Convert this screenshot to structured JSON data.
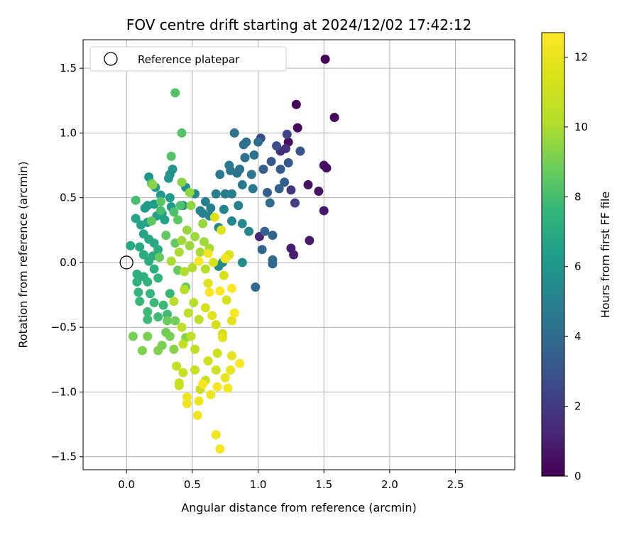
{
  "chart_data": {
    "type": "scatter",
    "title": "FOV centre drift starting at 2024/12/02 17:42:12",
    "xlabel": "Angular distance from reference (arcmin)",
    "ylabel": "Rotation from reference (arcmin)",
    "xlim": [
      -0.33,
      2.95
    ],
    "ylim": [
      -1.6,
      1.72
    ],
    "xticks": [
      "0.0",
      "0.5",
      "1.0",
      "1.5",
      "2.0",
      "2.5"
    ],
    "xtick_values": [
      0,
      0.5,
      1.0,
      1.5,
      2.0,
      2.5
    ],
    "yticks": [
      "−1.5",
      "−1.0",
      "−0.5",
      "0.0",
      "0.5",
      "1.0",
      "1.5"
    ],
    "ytick_values": [
      -1.5,
      -1.0,
      -0.5,
      0,
      0.5,
      1.0,
      1.5
    ],
    "grid": true,
    "colormap": "viridis",
    "colorbar": {
      "label": "Hours from first FF file",
      "range": [
        0,
        12.7
      ],
      "ticks": [
        "0",
        "2",
        "4",
        "6",
        "8",
        "10",
        "12"
      ],
      "tick_values": [
        0,
        2,
        4,
        6,
        8,
        10,
        12
      ]
    },
    "legend": {
      "position": "top-left",
      "entries": [
        "Reference platepar"
      ]
    },
    "reference_point": {
      "x": 0.0,
      "y": 0.0
    },
    "points": [
      [
        1.51,
        1.57,
        0.1
      ],
      [
        1.29,
        1.22,
        0.2
      ],
      [
        1.3,
        1.04,
        0.3
      ],
      [
        1.58,
        1.12,
        0.3
      ],
      [
        1.23,
        0.93,
        0.4
      ],
      [
        1.5,
        0.75,
        0.5
      ],
      [
        1.52,
        0.73,
        0.5
      ],
      [
        1.38,
        0.6,
        0.6
      ],
      [
        1.46,
        0.55,
        0.6
      ],
      [
        1.5,
        0.4,
        0.7
      ],
      [
        1.39,
        0.17,
        0.8
      ],
      [
        1.25,
        0.11,
        0.9
      ],
      [
        1.27,
        0.06,
        1.0
      ],
      [
        1.01,
        0.2,
        1.2
      ],
      [
        1.17,
        0.86,
        1.5
      ],
      [
        1.21,
        0.88,
        1.6
      ],
      [
        1.25,
        0.56,
        1.8
      ],
      [
        1.28,
        0.46,
        2.1
      ],
      [
        1.22,
        0.99,
        2.3
      ],
      [
        1.02,
        0.96,
        2.6
      ],
      [
        1.14,
        0.9,
        2.8
      ],
      [
        1.32,
        0.86,
        3.0
      ],
      [
        1.1,
        0.78,
        3.1
      ],
      [
        1.23,
        0.77,
        3.2
      ],
      [
        1.17,
        0.72,
        3.3
      ],
      [
        1.04,
        0.72,
        3.4
      ],
      [
        1.2,
        0.62,
        3.5
      ],
      [
        1.07,
        0.54,
        3.5
      ],
      [
        1.16,
        0.57,
        3.6
      ],
      [
        1.05,
        0.24,
        3.6
      ],
      [
        1.11,
        0.21,
        3.7
      ],
      [
        1.03,
        0.1,
        3.7
      ],
      [
        1.11,
        0.02,
        3.8
      ],
      [
        1.11,
        -0.01,
        3.8
      ],
      [
        0.98,
        -0.19,
        3.9
      ],
      [
        1.09,
        0.46,
        4.0
      ],
      [
        1.0,
        0.93,
        4.0
      ],
      [
        0.91,
        0.93,
        4.1
      ],
      [
        0.89,
        0.91,
        4.2
      ],
      [
        0.82,
        1.0,
        4.2
      ],
      [
        0.97,
        0.83,
        4.3
      ],
      [
        0.9,
        0.81,
        4.3
      ],
      [
        0.86,
        0.72,
        4.4
      ],
      [
        0.84,
        0.69,
        4.4
      ],
      [
        0.95,
        0.68,
        4.5
      ],
      [
        0.79,
        0.71,
        4.5
      ],
      [
        0.78,
        0.75,
        4.6
      ],
      [
        0.71,
        0.68,
        4.6
      ],
      [
        0.88,
        0.6,
        4.7
      ],
      [
        0.96,
        0.57,
        4.7
      ],
      [
        0.8,
        0.53,
        4.8
      ],
      [
        0.75,
        0.53,
        4.8
      ],
      [
        0.68,
        0.53,
        4.9
      ],
      [
        0.6,
        0.47,
        4.9
      ],
      [
        0.85,
        0.44,
        5.0
      ],
      [
        0.64,
        0.42,
        5.0
      ],
      [
        0.58,
        0.38,
        5.1
      ],
      [
        0.56,
        0.4,
        5.1
      ],
      [
        0.63,
        0.36,
        5.2
      ],
      [
        0.74,
        0.41,
        5.2
      ],
      [
        0.8,
        0.32,
        5.3
      ],
      [
        0.93,
        0.24,
        5.3
      ],
      [
        0.88,
        0.3,
        5.4
      ],
      [
        0.7,
        0.27,
        5.4
      ],
      [
        0.73,
        0.0,
        5.5
      ],
      [
        0.7,
        -0.03,
        5.5
      ],
      [
        0.88,
        0.0,
        5.6
      ],
      [
        0.52,
        0.53,
        5.6
      ],
      [
        0.45,
        0.58,
        5.7
      ],
      [
        0.43,
        0.44,
        5.8
      ],
      [
        0.35,
        0.72,
        5.9
      ],
      [
        0.33,
        0.68,
        5.9
      ],
      [
        0.32,
        0.65,
        6.0
      ],
      [
        0.17,
        0.66,
        6.0
      ],
      [
        0.22,
        0.58,
        6.1
      ],
      [
        0.26,
        0.52,
        6.1
      ],
      [
        0.33,
        0.5,
        6.2
      ],
      [
        0.21,
        0.45,
        6.2
      ],
      [
        0.16,
        0.44,
        6.3
      ],
      [
        0.14,
        0.42,
        6.3
      ],
      [
        0.34,
        0.43,
        6.4
      ],
      [
        0.27,
        0.38,
        6.4
      ],
      [
        0.23,
        0.36,
        6.5
      ],
      [
        0.29,
        0.33,
        6.5
      ],
      [
        0.16,
        0.31,
        6.6
      ],
      [
        0.11,
        0.29,
        6.6
      ],
      [
        0.07,
        0.34,
        6.7
      ],
      [
        0.13,
        0.22,
        6.7
      ],
      [
        0.17,
        0.18,
        6.8
      ],
      [
        0.21,
        0.15,
        6.8
      ],
      [
        0.03,
        0.13,
        6.9
      ],
      [
        0.1,
        0.12,
        6.9
      ],
      [
        0.13,
        0.06,
        7.0
      ],
      [
        0.2,
        0.05,
        7.0
      ],
      [
        0.24,
        0.1,
        7.1
      ],
      [
        0.17,
        0.01,
        7.1
      ],
      [
        0.08,
        -0.09,
        7.2
      ],
      [
        0.13,
        -0.11,
        7.2
      ],
      [
        0.21,
        -0.05,
        7.3
      ],
      [
        0.08,
        -0.15,
        7.3
      ],
      [
        0.16,
        -0.15,
        7.4
      ],
      [
        0.24,
        -0.12,
        7.4
      ],
      [
        0.09,
        -0.23,
        7.5
      ],
      [
        0.18,
        -0.24,
        7.5
      ],
      [
        0.33,
        -0.24,
        7.6
      ],
      [
        0.1,
        -0.3,
        7.6
      ],
      [
        0.21,
        -0.31,
        7.7
      ],
      [
        0.28,
        -0.33,
        7.7
      ],
      [
        0.16,
        -0.38,
        7.8
      ],
      [
        0.16,
        -0.44,
        7.8
      ],
      [
        0.24,
        -0.42,
        7.9
      ],
      [
        0.31,
        -0.4,
        7.9
      ],
      [
        0.07,
        0.48,
        8.0
      ],
      [
        0.26,
        0.4,
        8.0
      ],
      [
        0.36,
        0.39,
        8.1
      ],
      [
        0.41,
        0.44,
        8.1
      ],
      [
        0.37,
        1.31,
        8.2
      ],
      [
        0.42,
        1.0,
        8.3
      ],
      [
        0.34,
        0.82,
        8.3
      ],
      [
        0.19,
        0.61,
        8.4
      ],
      [
        0.26,
        0.47,
        8.4
      ],
      [
        0.39,
        0.33,
        8.5
      ],
      [
        0.19,
        0.32,
        8.5
      ],
      [
        0.3,
        0.21,
        8.6
      ],
      [
        0.37,
        0.15,
        8.6
      ],
      [
        0.25,
        0.04,
        8.7
      ],
      [
        0.39,
        -0.06,
        8.7
      ],
      [
        0.45,
        -0.19,
        8.8
      ],
      [
        0.31,
        -0.45,
        8.8
      ],
      [
        0.37,
        -0.45,
        8.9
      ],
      [
        0.3,
        -0.54,
        8.9
      ],
      [
        0.33,
        -0.57,
        9.0
      ],
      [
        0.05,
        -0.57,
        9.0
      ],
      [
        0.16,
        -0.57,
        9.1
      ],
      [
        0.27,
        -0.64,
        9.1
      ],
      [
        0.24,
        -0.68,
        9.2
      ],
      [
        0.12,
        -0.68,
        9.2
      ],
      [
        0.36,
        -0.67,
        9.3
      ],
      [
        0.45,
        -0.58,
        9.3
      ],
      [
        0.2,
        0.6,
        9.4
      ],
      [
        0.42,
        0.62,
        9.4
      ],
      [
        0.48,
        0.54,
        9.5
      ],
      [
        0.49,
        0.44,
        9.5
      ],
      [
        0.58,
        0.3,
        9.6
      ],
      [
        0.46,
        0.25,
        9.6
      ],
      [
        0.52,
        0.2,
        9.7
      ],
      [
        0.48,
        0.13,
        9.7
      ],
      [
        0.42,
        0.17,
        9.8
      ],
      [
        0.59,
        0.16,
        9.8
      ],
      [
        0.63,
        0.11,
        9.9
      ],
      [
        0.56,
        0.08,
        9.9
      ],
      [
        0.4,
        0.08,
        10.0
      ],
      [
        0.34,
        0.01,
        10.0
      ],
      [
        0.44,
        -0.07,
        10.1
      ],
      [
        0.5,
        -0.04,
        10.1
      ],
      [
        0.6,
        -0.05,
        10.2
      ],
      [
        0.44,
        -0.21,
        10.2
      ],
      [
        0.51,
        -0.31,
        10.3
      ],
      [
        0.36,
        -0.3,
        10.3
      ],
      [
        0.47,
        -0.39,
        10.4
      ],
      [
        0.55,
        -0.44,
        10.4
      ],
      [
        0.42,
        -0.5,
        10.5
      ],
      [
        0.49,
        -0.57,
        10.5
      ],
      [
        0.43,
        -0.63,
        10.6
      ],
      [
        0.52,
        -0.67,
        10.6
      ],
      [
        0.38,
        -0.8,
        10.7
      ],
      [
        0.43,
        -0.85,
        10.7
      ],
      [
        0.52,
        -0.83,
        10.8
      ],
      [
        0.4,
        -0.93,
        10.8
      ],
      [
        0.4,
        -0.95,
        10.9
      ],
      [
        0.56,
        -0.98,
        10.9
      ],
      [
        0.6,
        -0.91,
        11.0
      ],
      [
        0.68,
        -0.83,
        11.0
      ],
      [
        0.62,
        -0.76,
        11.1
      ],
      [
        0.69,
        -0.7,
        11.1
      ],
      [
        0.73,
        -0.55,
        11.2
      ],
      [
        0.68,
        -0.48,
        11.2
      ],
      [
        0.6,
        -0.35,
        11.3
      ],
      [
        0.76,
        -0.29,
        11.3
      ],
      [
        0.74,
        -0.1,
        11.4
      ],
      [
        0.66,
        0.0,
        11.4
      ],
      [
        0.76,
        0.04,
        11.5
      ],
      [
        0.78,
        0.06,
        11.5
      ],
      [
        0.72,
        0.25,
        11.6
      ],
      [
        0.67,
        0.35,
        11.6
      ],
      [
        0.62,
        -0.16,
        11.7
      ],
      [
        0.65,
        -0.41,
        11.7
      ],
      [
        0.8,
        -0.45,
        11.8
      ],
      [
        0.73,
        -0.58,
        11.8
      ],
      [
        0.8,
        -0.72,
        11.9
      ],
      [
        0.79,
        -0.83,
        12.0
      ],
      [
        0.75,
        -0.89,
        12.0
      ],
      [
        0.64,
        -1.02,
        12.1
      ],
      [
        0.55,
        -1.07,
        12.1
      ],
      [
        0.46,
        -1.04,
        12.2
      ],
      [
        0.46,
        -1.09,
        12.2
      ],
      [
        0.54,
        -1.18,
        12.3
      ],
      [
        0.68,
        -1.33,
        12.3
      ],
      [
        0.71,
        -1.44,
        12.4
      ],
      [
        0.77,
        -0.97,
        12.4
      ],
      [
        0.69,
        -0.96,
        12.5
      ],
      [
        0.58,
        -0.94,
        12.5
      ],
      [
        0.86,
        -0.78,
        12.6
      ],
      [
        0.82,
        -0.39,
        12.6
      ],
      [
        0.8,
        -0.2,
        12.7
      ],
      [
        0.71,
        -0.22,
        12.7
      ],
      [
        0.63,
        -0.23,
        12.6
      ],
      [
        0.55,
        0.01,
        12.5
      ],
      [
        0.75,
        0.03,
        12.4
      ],
      [
        0.62,
        0.07,
        12.3
      ]
    ]
  }
}
